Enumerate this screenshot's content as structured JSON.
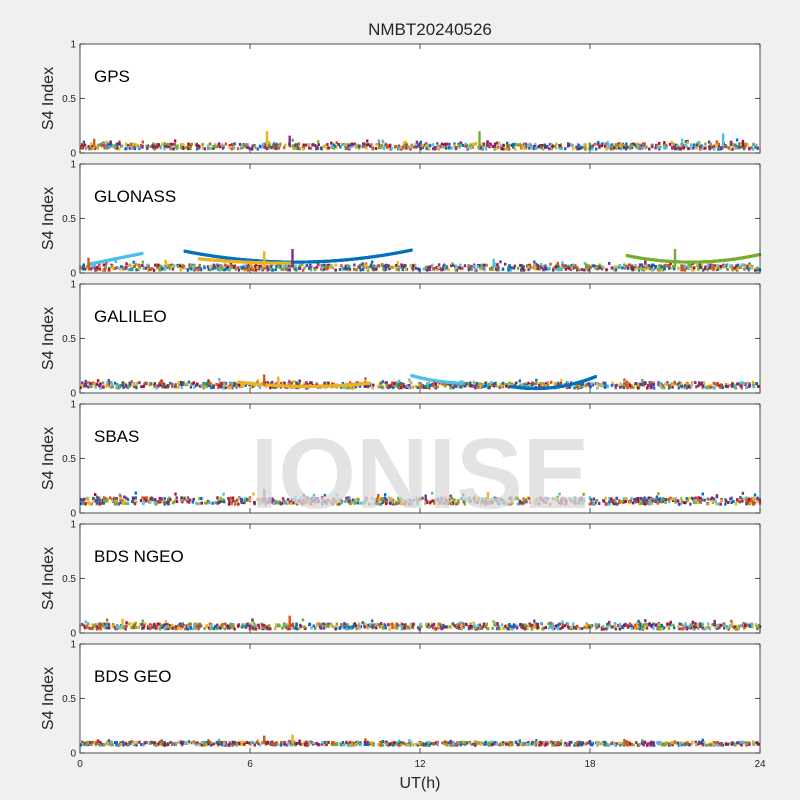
{
  "figure": {
    "title": "NMBT20240526",
    "watermark": "IONISE",
    "xlabel": "UT(h)",
    "background": "#f0f0f0",
    "axes_background": "#ffffff",
    "axis_color": "#262626"
  },
  "series_colors": [
    "#0072BD",
    "#D95319",
    "#EDB120",
    "#7E2F8E",
    "#77AC30",
    "#4DBEEE",
    "#A2142F"
  ],
  "chart_data": [
    {
      "type": "scatter",
      "label": "GPS",
      "ylabel": "S4 Index",
      "xlim": [
        0,
        24
      ],
      "ylim": [
        0,
        1
      ],
      "xticks": [
        0,
        6,
        12,
        18,
        24
      ],
      "yticks": [
        0,
        0.5,
        1
      ],
      "ytick_labels": [
        "0",
        "0.5",
        "1"
      ],
      "baseline": 0.06,
      "spread": 0.05,
      "spikes": [
        [
          0.5,
          0.13
        ],
        [
          6.6,
          0.2
        ],
        [
          7.4,
          0.16
        ],
        [
          14.1,
          0.2
        ],
        [
          22.7,
          0.18
        ],
        [
          23.4,
          0.12
        ]
      ],
      "arcs": []
    },
    {
      "type": "scatter",
      "label": "GLONASS",
      "ylabel": "S4 Index",
      "xlim": [
        0,
        24
      ],
      "ylim": [
        0,
        1
      ],
      "xticks": [
        0,
        6,
        12,
        18,
        24
      ],
      "yticks": [
        0,
        0.5,
        1
      ],
      "ytick_labels": [
        "0",
        "0.5",
        "1"
      ],
      "baseline": 0.05,
      "spread": 0.05,
      "spikes": [
        [
          0.3,
          0.14
        ],
        [
          6.5,
          0.2
        ],
        [
          7.5,
          0.22
        ],
        [
          21.0,
          0.22
        ],
        [
          14.6,
          0.13
        ]
      ],
      "arcs": [
        {
          "x0": 0.3,
          "x1": 2.2,
          "y_start": 0.08,
          "y_mid": 0.13,
          "y_end": 0.18
        },
        {
          "x0": 3.7,
          "x1": 11.7,
          "y_start": 0.2,
          "y_mid": 0.1,
          "y_end": 0.21
        },
        {
          "x0": 4.2,
          "x1": 7.4,
          "y_start": 0.13,
          "y_mid": 0.1,
          "y_end": 0.09
        },
        {
          "x0": 19.3,
          "x1": 24.0,
          "y_start": 0.16,
          "y_mid": 0.1,
          "y_end": 0.17
        }
      ]
    },
    {
      "type": "scatter",
      "label": "GALILEO",
      "ylabel": "S4 Index",
      "xlim": [
        0,
        24
      ],
      "ylim": [
        0,
        1
      ],
      "xticks": [
        0,
        6,
        12,
        18,
        24
      ],
      "yticks": [
        0,
        0.5,
        1
      ],
      "ytick_labels": [
        "0",
        "0.5",
        "1"
      ],
      "baseline": 0.07,
      "spread": 0.05,
      "spikes": [
        [
          6.5,
          0.17
        ],
        [
          7.0,
          0.15
        ],
        [
          0.2,
          0.12
        ]
      ],
      "arcs": [
        {
          "x0": 11.7,
          "x1": 13.5,
          "y_start": 0.16,
          "y_mid": 0.11,
          "y_end": 0.09
        },
        {
          "x0": 15.2,
          "x1": 18.2,
          "y_start": 0.06,
          "y_mid": 0.05,
          "y_end": 0.15
        },
        {
          "x0": 5.6,
          "x1": 10.2,
          "y_start": 0.1,
          "y_mid": 0.06,
          "y_end": 0.09
        }
      ]
    },
    {
      "type": "scatter",
      "label": "SBAS",
      "ylabel": "S4 Index",
      "xlim": [
        0,
        24
      ],
      "ylim": [
        0,
        1
      ],
      "xticks": [
        0,
        6,
        12,
        18,
        24
      ],
      "yticks": [
        0,
        0.5,
        1
      ],
      "ytick_labels": [
        "0",
        "0.5",
        "1"
      ],
      "baseline": 0.11,
      "spread": 0.06,
      "spikes": [
        [
          6.5,
          0.22
        ],
        [
          14.4,
          0.19
        ],
        [
          12.2,
          0.17
        ]
      ],
      "arcs": []
    },
    {
      "type": "scatter",
      "label": "BDS NGEO",
      "ylabel": "S4 Index",
      "xlim": [
        0,
        24
      ],
      "ylim": [
        0,
        1
      ],
      "xticks": [
        0,
        6,
        12,
        18,
        24
      ],
      "yticks": [
        0,
        0.5,
        1
      ],
      "ytick_labels": [
        "0",
        "0.5",
        "1"
      ],
      "baseline": 0.06,
      "spread": 0.05,
      "spikes": [
        [
          7.4,
          0.16
        ],
        [
          1.5,
          0.13
        ],
        [
          22.4,
          0.12
        ]
      ],
      "arcs": []
    },
    {
      "type": "scatter",
      "label": "BDS GEO",
      "ylabel": "S4 Index",
      "xlim": [
        0,
        24
      ],
      "ylim": [
        0,
        1
      ],
      "xticks": [
        0,
        6,
        12,
        18,
        24
      ],
      "yticks": [
        0,
        0.5,
        1
      ],
      "ytick_labels": [
        "0",
        "0.5",
        "1"
      ],
      "baseline": 0.085,
      "spread": 0.03,
      "spikes": [
        [
          6.5,
          0.16
        ],
        [
          7.5,
          0.17
        ],
        [
          18.0,
          0.12
        ]
      ],
      "arcs": []
    }
  ]
}
